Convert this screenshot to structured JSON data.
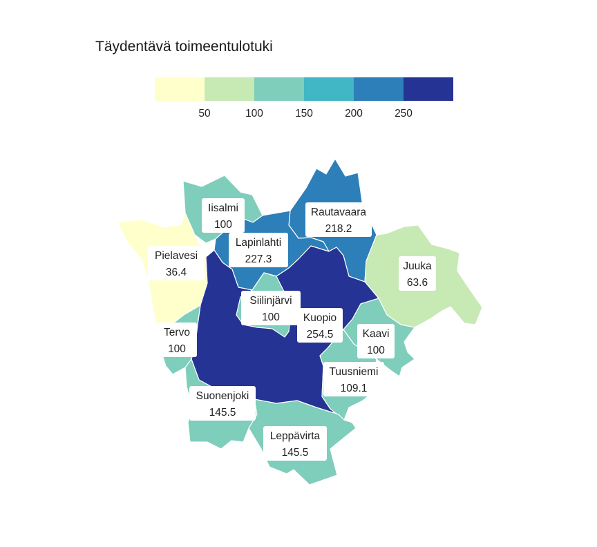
{
  "title": "Täydentävä toimeentulotuki",
  "legend": {
    "bins": [
      {
        "from": 0,
        "to": 50,
        "color": "#ffffcc"
      },
      {
        "from": 50,
        "to": 100,
        "color": "#c7e9b4"
      },
      {
        "from": 100,
        "to": 150,
        "color": "#7fcdbb"
      },
      {
        "from": 150,
        "to": 200,
        "color": "#41b6c4"
      },
      {
        "from": 200,
        "to": 250,
        "color": "#2c7fb8"
      },
      {
        "from": 250,
        "to": 300,
        "color": "#253494"
      }
    ],
    "ticks": [
      "50",
      "100",
      "150",
      "200",
      "250"
    ]
  },
  "regions": [
    {
      "id": "iisalmi",
      "name": "Iisalmi",
      "value": "100",
      "num": 100
    },
    {
      "id": "rautavaara",
      "name": "Rautavaara",
      "value": "218.2",
      "num": 218.2
    },
    {
      "id": "lapinlahti",
      "name": "Lapinlahti",
      "value": "227.3",
      "num": 227.3
    },
    {
      "id": "pielavesi",
      "name": "Pielavesi",
      "value": "36.4",
      "num": 36.4
    },
    {
      "id": "juuka",
      "name": "Juuka",
      "value": "63.6",
      "num": 63.6
    },
    {
      "id": "siilinjarvi",
      "name": "Siilinjärvi",
      "value": "100",
      "num": 100
    },
    {
      "id": "kuopio",
      "name": "Kuopio",
      "value": "254.5",
      "num": 254.5
    },
    {
      "id": "tervo",
      "name": "Tervo",
      "value": "100",
      "num": 100
    },
    {
      "id": "kaavi",
      "name": "Kaavi",
      "value": "100",
      "num": 100
    },
    {
      "id": "tuusniemi",
      "name": "Tuusniemi",
      "value": "109.1",
      "num": 109.1
    },
    {
      "id": "suonenjoki",
      "name": "Suonenjoki",
      "value": "145.5",
      "num": 145.5
    },
    {
      "id": "leppavirta",
      "name": "Leppävirta",
      "value": "145.5",
      "num": 145.5
    }
  ]
}
